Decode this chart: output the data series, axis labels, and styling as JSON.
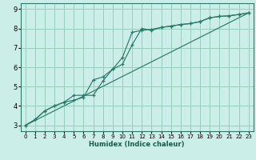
{
  "xlabel": "Humidex (Indice chaleur)",
  "bg_color": "#cceee8",
  "grid_color": "#99ccbb",
  "line_color": "#2a7a6a",
  "xlim": [
    -0.5,
    23.5
  ],
  "ylim": [
    2.7,
    9.3
  ],
  "xticks": [
    0,
    1,
    2,
    3,
    4,
    5,
    6,
    7,
    8,
    9,
    10,
    11,
    12,
    13,
    14,
    15,
    16,
    17,
    18,
    19,
    20,
    21,
    22,
    23
  ],
  "yticks": [
    3,
    4,
    5,
    6,
    7,
    8,
    9
  ],
  "line1_x": [
    0,
    1,
    2,
    3,
    4,
    5,
    6,
    7,
    8,
    9,
    10,
    11,
    12,
    13,
    14,
    15,
    16,
    17,
    18,
    19,
    20,
    21,
    22,
    23
  ],
  "line1_y": [
    3.0,
    3.3,
    3.75,
    4.0,
    4.2,
    4.3,
    4.45,
    5.35,
    5.5,
    5.9,
    6.5,
    7.8,
    7.9,
    7.95,
    8.05,
    8.12,
    8.2,
    8.25,
    8.35,
    8.55,
    8.62,
    8.65,
    8.72,
    8.8
  ],
  "line2_x": [
    0,
    1,
    2,
    3,
    4,
    5,
    6,
    7,
    8,
    9,
    10,
    11,
    12,
    13,
    14,
    15,
    16,
    17,
    18,
    19,
    20,
    21,
    22,
    23
  ],
  "line2_y": [
    3.0,
    3.3,
    3.75,
    4.0,
    4.2,
    4.55,
    4.55,
    4.55,
    5.3,
    5.9,
    6.15,
    7.15,
    8.0,
    7.9,
    8.05,
    8.12,
    8.2,
    8.25,
    8.35,
    8.55,
    8.62,
    8.65,
    8.72,
    8.8
  ],
  "line3_x": [
    0,
    23
  ],
  "line3_y": [
    3.0,
    8.8
  ],
  "xlabel_fontsize": 6,
  "tick_fontsize_x": 5,
  "tick_fontsize_y": 6
}
